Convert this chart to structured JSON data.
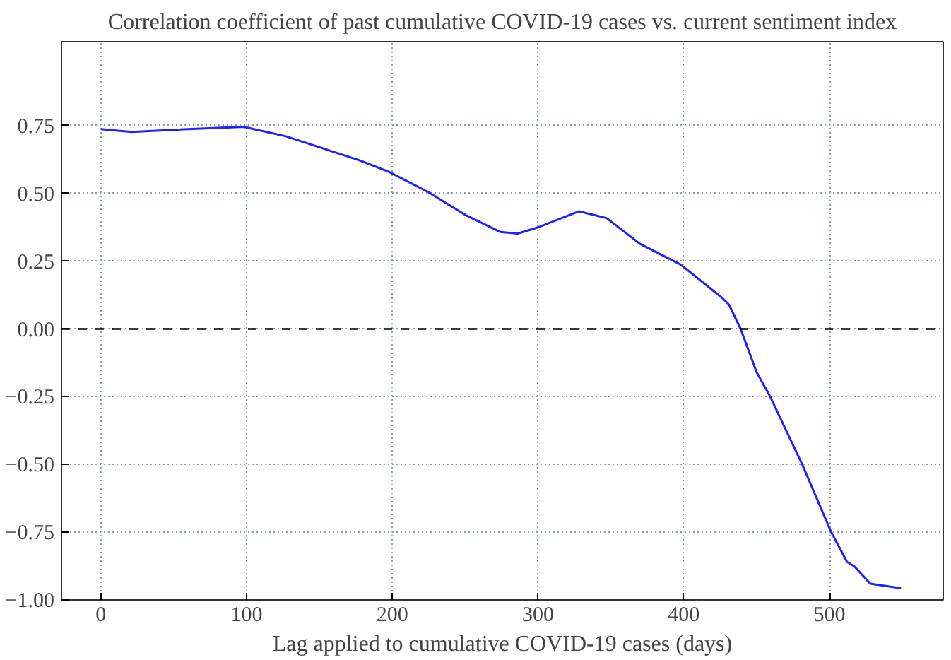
{
  "chart_data": {
    "type": "line",
    "title": "Correlation coefficient of past cumulative COVID-19 cases vs. current sentiment index",
    "xlabel": "Lag applied to cumulative COVID-19 cases (days)",
    "series": [
      {
        "color": "#1f1fff",
        "x": [
          0,
          21,
          50,
          98,
          127,
          176,
          198,
          225,
          251,
          274,
          286,
          300,
          328,
          347,
          370,
          398,
          426,
          431,
          439,
          450,
          459,
          481,
          501,
          512,
          517,
          528,
          549
        ],
        "values": [
          0.737,
          0.727,
          0.735,
          0.746,
          0.711,
          0.625,
          0.579,
          0.504,
          0.418,
          0.358,
          0.352,
          0.375,
          0.434,
          0.409,
          0.314,
          0.237,
          0.116,
          0.09,
          0.0,
          -0.16,
          -0.247,
          -0.497,
          -0.748,
          -0.86,
          -0.876,
          -0.94,
          -0.957
        ]
      }
    ],
    "xlim": [
      -27,
      578
    ],
    "ylim": [
      -1.0,
      1.06
    ],
    "xticks": [
      0,
      100,
      200,
      300,
      400,
      500
    ],
    "yticks": [
      {
        "value": -1.0,
        "label": "−1.00"
      },
      {
        "value": -0.75,
        "label": "−0.75"
      },
      {
        "value": -0.5,
        "label": "−0.50"
      },
      {
        "value": -0.25,
        "label": "−0.25"
      },
      {
        "value": 0,
        "label": "0.00"
      },
      {
        "value": 0.25,
        "label": "0.25"
      },
      {
        "value": 0.5,
        "label": "0.50"
      },
      {
        "value": 0.75,
        "label": "0.75"
      }
    ],
    "ref_lines": [
      {
        "axis": "y",
        "value": 0,
        "color": "#000000",
        "line_style": "dashed"
      }
    ],
    "grid": true,
    "line_style": "solid",
    "marker": "none"
  }
}
